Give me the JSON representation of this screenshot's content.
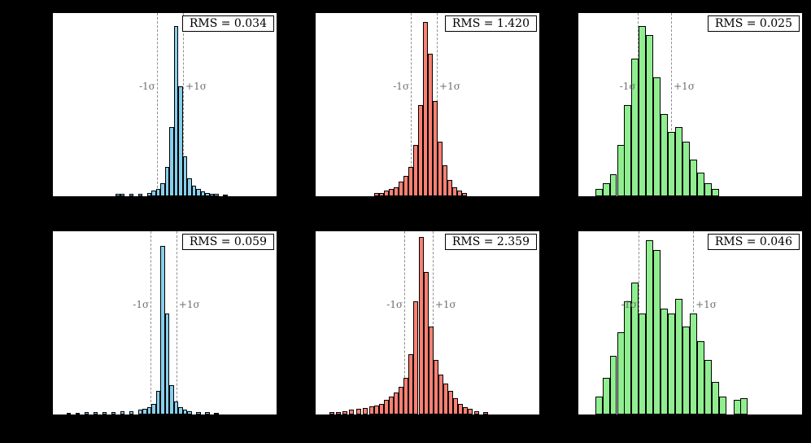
{
  "figure": {
    "background_color": "#000000",
    "panel_background": "#ffffff",
    "sigma_line_color": "#8f8f8f",
    "sigma_label_color": "#6f6f6f"
  },
  "chart_data": [
    {
      "type": "histogram",
      "panel": "top-left",
      "rms_label": "RMS = 0.034",
      "color": "#87CEEB",
      "edge_color": "#000000",
      "bin_width": 0.02,
      "sigma_lines": {
        "minus": 0.465,
        "plus": 0.582,
        "minus_label": "-1σ",
        "plus_label": "+1σ"
      },
      "bars": [
        [
          0.28,
          0.012
        ],
        [
          0.3,
          0.012
        ],
        [
          0.34,
          0.015
        ],
        [
          0.38,
          0.012
        ],
        [
          0.42,
          0.02
        ],
        [
          0.44,
          0.03
        ],
        [
          0.46,
          0.04
        ],
        [
          0.48,
          0.07
        ],
        [
          0.5,
          0.16
        ],
        [
          0.52,
          0.38
        ],
        [
          0.54,
          0.93
        ],
        [
          0.56,
          0.6
        ],
        [
          0.58,
          0.22
        ],
        [
          0.6,
          0.1
        ],
        [
          0.62,
          0.06
        ],
        [
          0.64,
          0.04
        ],
        [
          0.66,
          0.025
        ],
        [
          0.68,
          0.02
        ],
        [
          0.7,
          0.015
        ],
        [
          0.72,
          0.012
        ],
        [
          0.76,
          0.01
        ]
      ]
    },
    {
      "type": "histogram",
      "panel": "top-middle",
      "rms_label": "RMS = 1.420",
      "color": "#FA8072",
      "edge_color": "#000000",
      "bin_width": 0.022,
      "sigma_lines": {
        "minus": 0.426,
        "plus": 0.542,
        "minus_label": "-1σ",
        "plus_label": "+1σ"
      },
      "bars": [
        [
          0.26,
          0.02
        ],
        [
          0.282,
          0.02
        ],
        [
          0.304,
          0.03
        ],
        [
          0.326,
          0.04
        ],
        [
          0.348,
          0.05
        ],
        [
          0.37,
          0.08
        ],
        [
          0.392,
          0.11
        ],
        [
          0.414,
          0.16
        ],
        [
          0.436,
          0.28
        ],
        [
          0.458,
          0.5
        ],
        [
          0.48,
          0.95
        ],
        [
          0.502,
          0.78
        ],
        [
          0.524,
          0.52
        ],
        [
          0.546,
          0.3
        ],
        [
          0.568,
          0.17
        ],
        [
          0.59,
          0.09
        ],
        [
          0.612,
          0.05
        ],
        [
          0.634,
          0.03
        ],
        [
          0.656,
          0.02
        ]
      ]
    },
    {
      "type": "histogram",
      "panel": "top-right",
      "rms_label": "RMS = 0.025",
      "color": "#90EE90",
      "edge_color": "#000000",
      "bin_width": 0.0325,
      "sigma_lines": {
        "minus": 0.264,
        "plus": 0.415,
        "minus_label": "-1σ",
        "plus_label": "+1σ"
      },
      "bars": [
        [
          0.075,
          0.04
        ],
        [
          0.108,
          0.07
        ],
        [
          0.14,
          0.12
        ],
        [
          0.173,
          0.28
        ],
        [
          0.205,
          0.5
        ],
        [
          0.238,
          0.75
        ],
        [
          0.27,
          0.93
        ],
        [
          0.303,
          0.88
        ],
        [
          0.335,
          0.65
        ],
        [
          0.368,
          0.45
        ],
        [
          0.4,
          0.35
        ],
        [
          0.433,
          0.38
        ],
        [
          0.465,
          0.3
        ],
        [
          0.498,
          0.2
        ],
        [
          0.53,
          0.13
        ],
        [
          0.563,
          0.07
        ],
        [
          0.595,
          0.04
        ]
      ]
    },
    {
      "type": "histogram",
      "panel": "bottom-left",
      "rms_label": "RMS = 0.059",
      "color": "#87CEEB",
      "edge_color": "#000000",
      "bin_width": 0.02,
      "sigma_lines": {
        "minus": 0.437,
        "plus": 0.552,
        "minus_label": "-1σ",
        "plus_label": "+1σ"
      },
      "bars": [
        [
          0.06,
          0.01
        ],
        [
          0.1,
          0.01
        ],
        [
          0.14,
          0.012
        ],
        [
          0.18,
          0.012
        ],
        [
          0.22,
          0.015
        ],
        [
          0.26,
          0.015
        ],
        [
          0.3,
          0.02
        ],
        [
          0.34,
          0.02
        ],
        [
          0.38,
          0.025
        ],
        [
          0.4,
          0.03
        ],
        [
          0.42,
          0.04
        ],
        [
          0.44,
          0.06
        ],
        [
          0.46,
          0.13
        ],
        [
          0.48,
          0.92
        ],
        [
          0.5,
          0.55
        ],
        [
          0.52,
          0.16
        ],
        [
          0.54,
          0.07
        ],
        [
          0.56,
          0.04
        ],
        [
          0.58,
          0.025
        ],
        [
          0.6,
          0.02
        ],
        [
          0.64,
          0.015
        ],
        [
          0.68,
          0.012
        ],
        [
          0.72,
          0.01
        ]
      ]
    },
    {
      "type": "histogram",
      "panel": "bottom-middle",
      "rms_label": "RMS = 2.359",
      "color": "#FA8072",
      "edge_color": "#000000",
      "bin_width": 0.022,
      "sigma_lines": {
        "minus": 0.397,
        "plus": 0.523,
        "minus_label": "-1σ",
        "plus_label": "+1σ"
      },
      "bars": [
        [
          0.06,
          0.012
        ],
        [
          0.09,
          0.015
        ],
        [
          0.12,
          0.02
        ],
        [
          0.15,
          0.025
        ],
        [
          0.18,
          0.03
        ],
        [
          0.21,
          0.035
        ],
        [
          0.24,
          0.045
        ],
        [
          0.262,
          0.05
        ],
        [
          0.284,
          0.06
        ],
        [
          0.306,
          0.08
        ],
        [
          0.328,
          0.1
        ],
        [
          0.35,
          0.12
        ],
        [
          0.372,
          0.15
        ],
        [
          0.394,
          0.2
        ],
        [
          0.416,
          0.33
        ],
        [
          0.438,
          0.62
        ],
        [
          0.46,
          0.97
        ],
        [
          0.482,
          0.78
        ],
        [
          0.504,
          0.48
        ],
        [
          0.526,
          0.3
        ],
        [
          0.548,
          0.22
        ],
        [
          0.57,
          0.17
        ],
        [
          0.592,
          0.13
        ],
        [
          0.614,
          0.09
        ],
        [
          0.636,
          0.06
        ],
        [
          0.658,
          0.04
        ],
        [
          0.68,
          0.03
        ],
        [
          0.71,
          0.02
        ],
        [
          0.75,
          0.015
        ]
      ]
    },
    {
      "type": "histogram",
      "panel": "bottom-right",
      "rms_label": "RMS = 0.046",
      "color": "#90EE90",
      "edge_color": "#000000",
      "bin_width": 0.0325,
      "sigma_lines": {
        "minus": 0.27,
        "plus": 0.513,
        "minus_label": "-1σ",
        "plus_label": "+1σ"
      },
      "bars": [
        [
          0.075,
          0.1
        ],
        [
          0.108,
          0.2
        ],
        [
          0.14,
          0.32
        ],
        [
          0.173,
          0.45
        ],
        [
          0.205,
          0.62
        ],
        [
          0.238,
          0.72
        ],
        [
          0.27,
          0.55
        ],
        [
          0.303,
          0.95
        ],
        [
          0.335,
          0.9
        ],
        [
          0.368,
          0.58
        ],
        [
          0.4,
          0.55
        ],
        [
          0.433,
          0.63
        ],
        [
          0.465,
          0.48
        ],
        [
          0.498,
          0.55
        ],
        [
          0.53,
          0.4
        ],
        [
          0.563,
          0.3
        ],
        [
          0.595,
          0.18
        ],
        [
          0.628,
          0.1
        ],
        [
          0.693,
          0.08
        ],
        [
          0.725,
          0.09
        ]
      ]
    }
  ]
}
